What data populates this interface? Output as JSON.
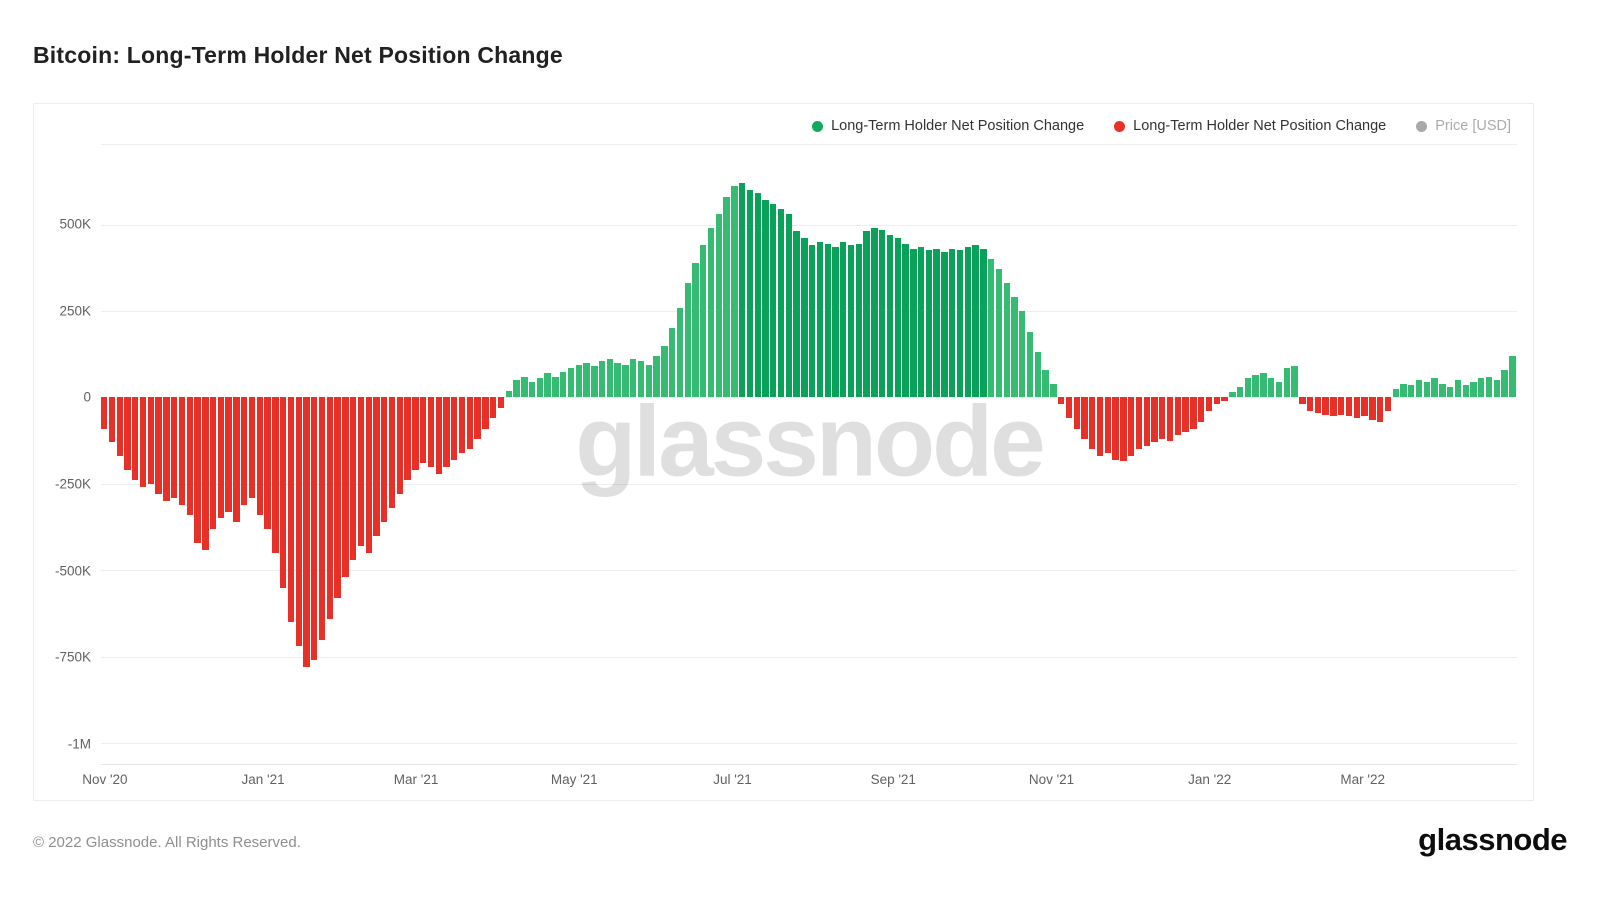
{
  "page": {
    "title": "Bitcoin: Long-Term Holder Net Position Change",
    "watermark": "glassnode",
    "footer_copyright": "© 2022 Glassnode. All Rights Reserved.",
    "brand_logo": "glassnode"
  },
  "legend": [
    {
      "label": "Long-Term Holder Net Position Change",
      "color": "#13a85e",
      "active": true
    },
    {
      "label": "Long-Term Holder Net Position Change",
      "color": "#e73128",
      "active": true
    },
    {
      "label": "Price [USD]",
      "color": "#a9a9a9",
      "active": false
    }
  ],
  "chart_data": {
    "type": "bar",
    "title": "Bitcoin: Long-Term Holder Net Position Change",
    "unit": "K (thousands of BTC)",
    "start_date": "2020-11-01",
    "step_days": 3,
    "y_max": 730,
    "y_min": -1060,
    "positive_color": "#35bb72",
    "positive_color_dark": "#0aa158",
    "negative_color": "#e73128",
    "dark_segment": {
      "start_index": 82,
      "end_index": 113
    },
    "y_ticks": [
      {
        "label": "500K",
        "value": 500
      },
      {
        "label": "250K",
        "value": 250
      },
      {
        "label": "0",
        "value": 0
      },
      {
        "label": "-250K",
        "value": -250
      },
      {
        "label": "-500K",
        "value": -500
      },
      {
        "label": "-750K",
        "value": -750
      },
      {
        "label": "-1M",
        "value": -1000
      }
    ],
    "x_ticks": [
      {
        "label": "Nov '20",
        "index": 0
      },
      {
        "label": "Jan '21",
        "index": 20.33
      },
      {
        "label": "Mar '21",
        "index": 40
      },
      {
        "label": "May '21",
        "index": 60.33
      },
      {
        "label": "Jul '21",
        "index": 80.67
      },
      {
        "label": "Sep '21",
        "index": 101.33
      },
      {
        "label": "Nov '21",
        "index": 121.67
      },
      {
        "label": "Jan '22",
        "index": 142
      },
      {
        "label": "Mar '22",
        "index": 161.67
      }
    ],
    "values_k": [
      -90,
      -130,
      -170,
      -210,
      -240,
      -260,
      -250,
      -280,
      -300,
      -290,
      -310,
      -340,
      -420,
      -440,
      -380,
      -350,
      -330,
      -360,
      -310,
      -290,
      -340,
      -380,
      -450,
      -550,
      -650,
      -720,
      -780,
      -760,
      -700,
      -640,
      -580,
      -520,
      -470,
      -430,
      -450,
      -400,
      -360,
      -320,
      -280,
      -240,
      -210,
      -190,
      -200,
      -220,
      -200,
      -180,
      -160,
      -150,
      -120,
      -90,
      -60,
      -30,
      20,
      50,
      60,
      45,
      55,
      70,
      60,
      75,
      85,
      95,
      100,
      90,
      105,
      110,
      100,
      95,
      110,
      105,
      95,
      120,
      150,
      200,
      260,
      330,
      390,
      440,
      490,
      530,
      580,
      610,
      620,
      600,
      590,
      570,
      560,
      545,
      530,
      480,
      460,
      440,
      450,
      445,
      435,
      450,
      440,
      445,
      480,
      490,
      485,
      470,
      460,
      445,
      430,
      435,
      425,
      430,
      420,
      430,
      425,
      435,
      440,
      430,
      400,
      370,
      330,
      290,
      250,
      190,
      130,
      80,
      40,
      -20,
      -60,
      -90,
      -120,
      -150,
      -170,
      -160,
      -180,
      -185,
      -170,
      -150,
      -140,
      -130,
      -120,
      -125,
      -110,
      -100,
      -90,
      -70,
      -40,
      -20,
      -10,
      15,
      30,
      55,
      65,
      70,
      55,
      45,
      85,
      90,
      -20,
      -40,
      -45,
      -50,
      -55,
      -50,
      -55,
      -60,
      -55,
      -65,
      -70,
      -40,
      25,
      40,
      35,
      50,
      45,
      55,
      40,
      30,
      50,
      35,
      45,
      55,
      60,
      50,
      80,
      120
    ]
  }
}
